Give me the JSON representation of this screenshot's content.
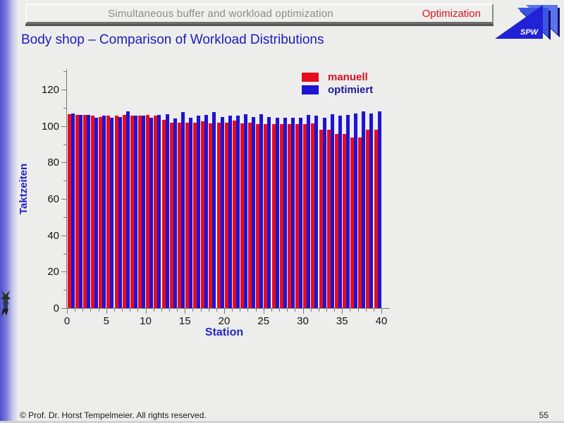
{
  "slide": {
    "header": {
      "title": "Simultaneous buffer and workload optimization",
      "badge": "Optimization"
    },
    "logo_text": "SPW",
    "title": "Body shop – Comparison of Workload Distributions",
    "footer": {
      "copyright": "© Prof. Dr. Horst Tempelmeier. All rights reserved.",
      "page_number": "55"
    }
  },
  "chart_data": {
    "type": "bar",
    "title": "",
    "xlabel": "Station",
    "ylabel": "Taktzeiten",
    "x": [
      1,
      2,
      3,
      4,
      5,
      6,
      7,
      8,
      9,
      10,
      11,
      12,
      13,
      14,
      15,
      16,
      17,
      18,
      19,
      20,
      21,
      22,
      23,
      24,
      25,
      26,
      27,
      28,
      29,
      30,
      31,
      32,
      33,
      34,
      35,
      36,
      37,
      38,
      39,
      40
    ],
    "series": [
      {
        "name": "manuell",
        "color": "#e60d1c",
        "values": [
          106.5,
          106,
          106,
          105.5,
          105,
          105.5,
          105.5,
          106,
          105.5,
          105.5,
          106,
          105.5,
          103.5,
          102,
          102,
          102,
          102,
          102.5,
          101.5,
          102,
          102,
          103,
          101.5,
          102,
          101,
          101,
          101,
          101,
          101,
          101,
          101,
          101.5,
          98,
          98,
          95.5,
          95.5,
          93.5,
          93.5,
          98,
          98
        ]
      },
      {
        "name": "optimiert",
        "color": "#1f13d4",
        "values": [
          107,
          106,
          106,
          104.5,
          105.5,
          104.5,
          105,
          108,
          105.5,
          105.5,
          104.5,
          106,
          106.5,
          104,
          107.5,
          104.5,
          105.5,
          106,
          107.5,
          105,
          105.5,
          105.5,
          106.5,
          105,
          106.5,
          105,
          104.5,
          104.5,
          104.5,
          104.5,
          106,
          105.5,
          104.5,
          106.5,
          105.5,
          106,
          107,
          108,
          107,
          108
        ]
      }
    ],
    "xlim": [
      0,
      41
    ],
    "ylim": [
      0,
      130
    ],
    "yticks": [
      0,
      20,
      40,
      60,
      80,
      100,
      120
    ],
    "xticks": [
      0,
      5,
      10,
      15,
      20,
      25,
      30,
      35,
      40
    ],
    "legend_position": "top-right",
    "grid": false
  },
  "colors": {
    "accent_red": "#de1220",
    "accent_blue": "#1c1cbb",
    "axis": "#7a7a7a",
    "background": "#ededec"
  }
}
